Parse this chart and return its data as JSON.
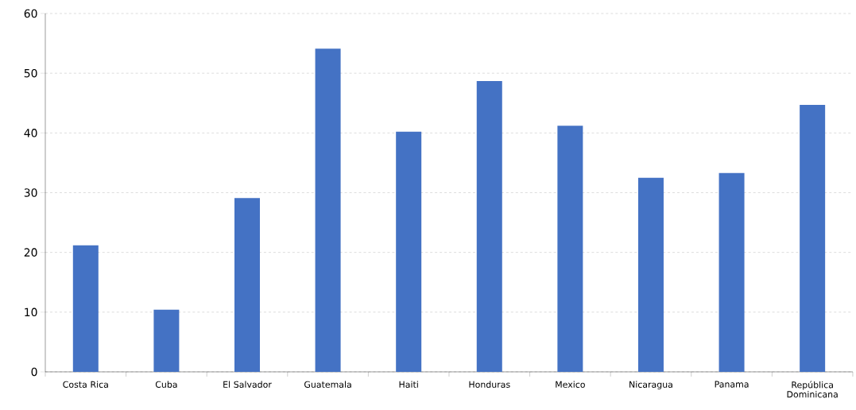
{
  "chart_data": {
    "type": "bar",
    "categories": [
      "Costa Rica",
      "Cuba",
      "El Salvador",
      "Guatemala",
      "Haiti",
      "Honduras",
      "Mexico",
      "Nicaragua",
      "Panama",
      "República Dominicana"
    ],
    "values": [
      21.2,
      10.4,
      29.1,
      54.1,
      40.2,
      48.7,
      41.2,
      32.5,
      33.3,
      44.7
    ],
    "color": "#4472c4",
    "ylim": [
      0,
      60
    ],
    "yticks": [
      0,
      10,
      20,
      30,
      40,
      50,
      60
    ],
    "grid": "y"
  }
}
